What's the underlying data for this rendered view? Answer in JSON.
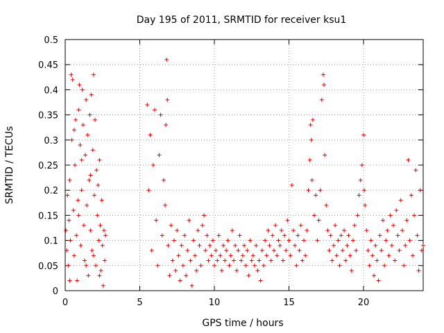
{
  "chart_data": {
    "type": "scatter",
    "title": "Day 195 of 2011, SRMTID for receiver ksu1",
    "xlabel": "GPS time / hours",
    "ylabel": "SRMTID / TECUs",
    "xlim": [
      0,
      24
    ],
    "ylim": [
      0,
      0.5
    ],
    "xticks": [
      0,
      5,
      10,
      15,
      20
    ],
    "xtick_labels": [
      "0",
      "5",
      "10",
      "15",
      "20"
    ],
    "yticks": [
      0,
      0.05,
      0.1,
      0.15,
      0.2,
      0.25,
      0.3,
      0.35,
      0.4,
      0.45,
      0.5
    ],
    "ytick_labels": [
      "0",
      "0.05",
      "0.1",
      "0.15",
      "0.2",
      "0.25",
      "0.3",
      "0.35",
      "0.4",
      "0.45",
      "0.5"
    ],
    "grid": true,
    "marker": "+",
    "marker_color": "#e00000",
    "series": [
      {
        "name": "SRMTID",
        "points": [
          [
            0.05,
            0.12
          ],
          [
            0.1,
            0.08
          ],
          [
            0.15,
            0.19
          ],
          [
            0.2,
            0.05
          ],
          [
            0.25,
            0.14
          ],
          [
            0.3,
            0.22
          ],
          [
            0.35,
            0.1
          ],
          [
            0.4,
            0.43
          ],
          [
            0.45,
            0.3
          ],
          [
            0.5,
            0.42
          ],
          [
            0.55,
            0.16
          ],
          [
            0.6,
            0.07
          ],
          [
            0.65,
            0.25
          ],
          [
            0.7,
            0.34
          ],
          [
            0.75,
            0.11
          ],
          [
            0.8,
            0.02
          ],
          [
            0.85,
            0.18
          ],
          [
            0.9,
            0.36
          ],
          [
            0.95,
            0.41
          ],
          [
            1.0,
            0.29
          ],
          [
            1.05,
            0.09
          ],
          [
            1.1,
            0.2
          ],
          [
            1.15,
            0.4
          ],
          [
            1.2,
            0.33
          ],
          [
            1.25,
            0.13
          ],
          [
            1.3,
            0.06
          ],
          [
            1.35,
            0.27
          ],
          [
            1.4,
            0.38
          ],
          [
            1.45,
            0.17
          ],
          [
            1.5,
            0.31
          ],
          [
            1.55,
            0.03
          ],
          [
            1.6,
            0.22
          ],
          [
            1.65,
            0.35
          ],
          [
            1.7,
            0.12
          ],
          [
            1.75,
            0.39
          ],
          [
            1.8,
            0.08
          ],
          [
            1.85,
            0.28
          ],
          [
            1.9,
            0.43
          ],
          [
            1.95,
            0.19
          ],
          [
            2.0,
            0.34
          ],
          [
            2.05,
            0.05
          ],
          [
            2.1,
            0.24
          ],
          [
            2.15,
            0.15
          ],
          [
            2.2,
            0.21
          ],
          [
            2.25,
            0.1
          ],
          [
            2.3,
            0.26
          ],
          [
            2.35,
            0.13
          ],
          [
            2.4,
            0.04
          ],
          [
            2.45,
            0.18
          ],
          [
            2.5,
            0.09
          ],
          [
            2.55,
            0.01
          ],
          [
            2.6,
            0.12
          ],
          [
            2.65,
            0.06
          ],
          [
            2.7,
            0.11
          ],
          [
            0.3,
            0.02
          ],
          [
            0.9,
            0.15
          ],
          [
            1.4,
            0.05
          ],
          [
            1.9,
            0.07
          ],
          [
            2.3,
            0.03
          ],
          [
            0.6,
            0.32
          ],
          [
            1.1,
            0.26
          ],
          [
            1.7,
            0.23
          ],
          [
            5.5,
            0.37
          ],
          [
            5.6,
            0.2
          ],
          [
            5.7,
            0.31
          ],
          [
            5.8,
            0.08
          ],
          [
            5.9,
            0.25
          ],
          [
            6.0,
            0.36
          ],
          [
            6.1,
            0.14
          ],
          [
            6.2,
            0.05
          ],
          [
            6.3,
            0.27
          ],
          [
            6.4,
            0.35
          ],
          [
            6.5,
            0.11
          ],
          [
            6.6,
            0.22
          ],
          [
            6.7,
            0.17
          ],
          [
            6.75,
            0.33
          ],
          [
            6.8,
            0.46
          ],
          [
            6.85,
            0.38
          ],
          [
            6.9,
            0.09
          ],
          [
            7.0,
            0.03
          ],
          [
            7.1,
            0.13
          ],
          [
            7.2,
            0.06
          ],
          [
            7.3,
            0.1
          ],
          [
            7.4,
            0.04
          ],
          [
            7.5,
            0.12
          ],
          [
            7.6,
            0.07
          ],
          [
            7.7,
            0.02
          ],
          [
            7.8,
            0.09
          ],
          [
            7.9,
            0.05
          ],
          [
            8.0,
            0.11
          ],
          [
            8.1,
            0.03
          ],
          [
            8.2,
            0.08
          ],
          [
            8.3,
            0.14
          ],
          [
            8.4,
            0.06
          ],
          [
            8.5,
            0.01
          ],
          [
            8.6,
            0.1
          ],
          [
            8.7,
            0.07
          ],
          [
            8.8,
            0.04
          ],
          [
            8.9,
            0.12
          ],
          [
            9.0,
            0.09
          ],
          [
            9.1,
            0.05
          ],
          [
            9.2,
            0.13
          ],
          [
            9.3,
            0.15
          ],
          [
            9.4,
            0.08
          ],
          [
            9.5,
            0.11
          ],
          [
            9.6,
            0.06
          ],
          [
            9.7,
            0.09
          ],
          [
            9.8,
            0.07
          ],
          [
            9.9,
            0.1
          ],
          [
            10.0,
            0.05
          ],
          [
            10.1,
            0.08
          ],
          [
            10.2,
            0.06
          ],
          [
            10.3,
            0.11
          ],
          [
            10.4,
            0.07
          ],
          [
            10.5,
            0.04
          ],
          [
            10.6,
            0.09
          ],
          [
            10.7,
            0.06
          ],
          [
            10.8,
            0.08
          ],
          [
            10.9,
            0.1
          ],
          [
            11.0,
            0.05
          ],
          [
            11.1,
            0.07
          ],
          [
            11.2,
            0.12
          ],
          [
            11.3,
            0.06
          ],
          [
            11.4,
            0.09
          ],
          [
            11.5,
            0.04
          ],
          [
            11.6,
            0.08
          ],
          [
            11.7,
            0.11
          ],
          [
            11.8,
            0.06
          ],
          [
            11.9,
            0.07
          ],
          [
            12.0,
            0.09
          ],
          [
            12.1,
            0.05
          ],
          [
            12.2,
            0.08
          ],
          [
            12.3,
            0.03
          ],
          [
            12.4,
            0.1
          ],
          [
            12.5,
            0.06
          ],
          [
            12.6,
            0.07
          ],
          [
            12.7,
            0.05
          ],
          [
            12.8,
            0.09
          ],
          [
            12.9,
            0.04
          ],
          [
            13.0,
            0.06
          ],
          [
            13.1,
            0.02
          ],
          [
            13.2,
            0.08
          ],
          [
            13.3,
            0.05
          ],
          [
            13.4,
            0.1
          ],
          [
            13.5,
            0.07
          ],
          [
            13.6,
            0.12
          ],
          [
            13.7,
            0.09
          ],
          [
            13.8,
            0.06
          ],
          [
            13.9,
            0.11
          ],
          [
            14.0,
            0.08
          ],
          [
            14.1,
            0.13
          ],
          [
            14.2,
            0.07
          ],
          [
            14.3,
            0.1
          ],
          [
            14.4,
            0.09
          ],
          [
            14.5,
            0.12
          ],
          [
            14.6,
            0.06
          ],
          [
            14.7,
            0.11
          ],
          [
            14.8,
            0.08
          ],
          [
            14.9,
            0.14
          ],
          [
            15.0,
            0.1
          ],
          [
            15.1,
            0.07
          ],
          [
            15.2,
            0.21
          ],
          [
            15.3,
            0.12
          ],
          [
            15.4,
            0.09
          ],
          [
            15.5,
            0.05
          ],
          [
            15.6,
            0.11
          ],
          [
            15.7,
            0.08
          ],
          [
            15.8,
            0.13
          ],
          [
            15.9,
            0.06
          ],
          [
            16.0,
            0.1
          ],
          [
            16.1,
            0.07
          ],
          [
            16.2,
            0.12
          ],
          [
            16.3,
            0.2
          ],
          [
            16.4,
            0.26
          ],
          [
            16.45,
            0.33
          ],
          [
            16.5,
            0.3
          ],
          [
            16.55,
            0.22
          ],
          [
            16.6,
            0.34
          ],
          [
            16.7,
            0.15
          ],
          [
            16.8,
            0.19
          ],
          [
            16.9,
            0.1
          ],
          [
            17.0,
            0.14
          ],
          [
            17.1,
            0.2
          ],
          [
            17.2,
            0.38
          ],
          [
            17.3,
            0.43
          ],
          [
            17.35,
            0.41
          ],
          [
            17.4,
            0.27
          ],
          [
            17.5,
            0.17
          ],
          [
            17.6,
            0.12
          ],
          [
            17.7,
            0.08
          ],
          [
            17.8,
            0.11
          ],
          [
            17.9,
            0.06
          ],
          [
            18.0,
            0.09
          ],
          [
            18.1,
            0.13
          ],
          [
            18.2,
            0.07
          ],
          [
            18.3,
            0.1
          ],
          [
            18.4,
            0.05
          ],
          [
            18.5,
            0.11
          ],
          [
            18.6,
            0.08
          ],
          [
            18.7,
            0.12
          ],
          [
            18.8,
            0.06
          ],
          [
            18.9,
            0.09
          ],
          [
            19.0,
            0.11
          ],
          [
            19.1,
            0.07
          ],
          [
            19.2,
            0.04
          ],
          [
            19.3,
            0.1
          ],
          [
            19.4,
            0.13
          ],
          [
            19.5,
            0.08
          ],
          [
            19.6,
            0.15
          ],
          [
            19.7,
            0.19
          ],
          [
            19.8,
            0.22
          ],
          [
            19.9,
            0.25
          ],
          [
            20.0,
            0.31
          ],
          [
            20.05,
            0.2
          ],
          [
            20.1,
            0.17
          ],
          [
            20.2,
            0.12
          ],
          [
            20.3,
            0.08
          ],
          [
            20.4,
            0.05
          ],
          [
            20.5,
            0.1
          ],
          [
            20.6,
            0.07
          ],
          [
            20.7,
            0.03
          ],
          [
            20.8,
            0.09
          ],
          [
            20.9,
            0.06
          ],
          [
            21.0,
            0.02
          ],
          [
            21.1,
            0.11
          ],
          [
            21.2,
            0.08
          ],
          [
            21.3,
            0.14
          ],
          [
            21.4,
            0.05
          ],
          [
            21.5,
            0.1
          ],
          [
            21.6,
            0.12
          ],
          [
            21.7,
            0.07
          ],
          [
            21.8,
            0.15
          ],
          [
            21.9,
            0.09
          ],
          [
            22.0,
            0.13
          ],
          [
            22.1,
            0.06
          ],
          [
            22.2,
            0.16
          ],
          [
            22.3,
            0.11
          ],
          [
            22.4,
            0.08
          ],
          [
            22.5,
            0.18
          ],
          [
            22.6,
            0.12
          ],
          [
            22.7,
            0.05
          ],
          [
            22.8,
            0.09
          ],
          [
            22.9,
            0.14
          ],
          [
            23.0,
            0.26
          ],
          [
            23.1,
            0.1
          ],
          [
            23.2,
            0.19
          ],
          [
            23.3,
            0.07
          ],
          [
            23.4,
            0.15
          ],
          [
            23.5,
            0.24
          ],
          [
            23.6,
            0.11
          ],
          [
            23.7,
            0.04
          ],
          [
            23.8,
            0.2
          ],
          [
            23.9,
            0.08
          ],
          [
            24.0,
            0.09
          ]
        ]
      }
    ]
  }
}
